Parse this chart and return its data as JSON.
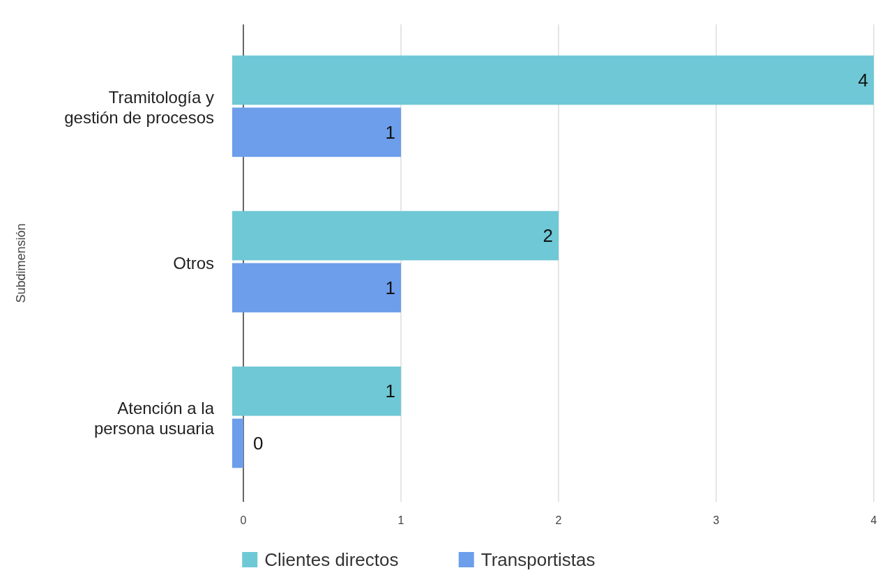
{
  "chart_data": {
    "type": "bar",
    "orientation": "horizontal",
    "ylabel": "Subdimensión",
    "categories": [
      "Tramitología y gestión de procesos",
      "Otros",
      "Atención a la persona usuaria"
    ],
    "series": [
      {
        "name": "Clientes directos",
        "color": "#6fc8d6",
        "values": [
          4,
          2,
          1
        ]
      },
      {
        "name": "Transportistas",
        "color": "#6d9eeb",
        "values": [
          1,
          1,
          0
        ]
      }
    ],
    "xlim": [
      0,
      4
    ],
    "xticks": [
      0,
      1,
      2,
      3,
      4
    ],
    "grid": "x",
    "legend": "bottom",
    "data_labels": true
  }
}
